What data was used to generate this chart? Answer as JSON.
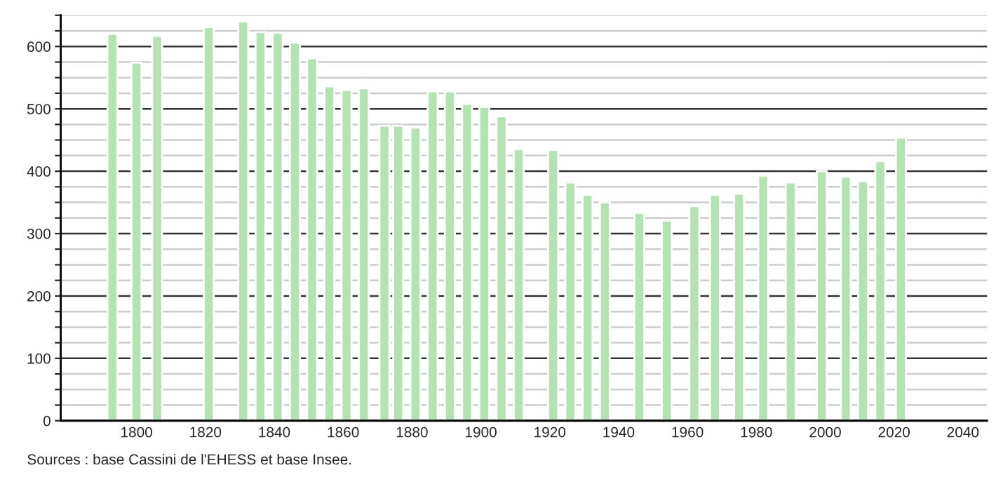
{
  "chart_data": {
    "type": "bar",
    "x": [
      1793,
      1800,
      1806,
      1821,
      1831,
      1836,
      1841,
      1846,
      1851,
      1856,
      1861,
      1866,
      1872,
      1876,
      1881,
      1886,
      1891,
      1896,
      1901,
      1906,
      1911,
      1921,
      1926,
      1931,
      1936,
      1946,
      1954,
      1962,
      1968,
      1975,
      1982,
      1990,
      1999,
      2006,
      2011,
      2016,
      2022
    ],
    "values": [
      620,
      574,
      617,
      631,
      640,
      623,
      622,
      606,
      581,
      536,
      530,
      533,
      473,
      473,
      470,
      528,
      528,
      508,
      503,
      488,
      435,
      434,
      382,
      362,
      350,
      333,
      321,
      344,
      362,
      364,
      393,
      382,
      400,
      391,
      384,
      416,
      454
    ],
    "color": "#b3e3b3",
    "xlim": [
      1778,
      2047
    ],
    "xticks": [
      1800,
      1820,
      1840,
      1860,
      1880,
      1900,
      1920,
      1940,
      1960,
      1980,
      2000,
      2020,
      2040
    ],
    "ylim": [
      0,
      650
    ],
    "yticks": [
      0,
      {
        "value": 25,
        "label": null
      },
      {
        "value": 50,
        "label": null
      },
      {
        "value": 75,
        "label": null
      },
      100,
      {
        "value": 125,
        "label": null
      },
      {
        "value": 150,
        "label": null
      },
      {
        "value": 175,
        "label": null
      },
      200,
      {
        "value": 225,
        "label": null
      },
      {
        "value": 250,
        "label": null
      },
      {
        "value": 275,
        "label": null
      },
      300,
      {
        "value": 325,
        "label": null
      },
      {
        "value": 350,
        "label": null
      },
      {
        "value": 375,
        "label": null
      },
      400,
      {
        "value": 425,
        "label": null
      },
      {
        "value": 450,
        "label": null
      },
      {
        "value": 475,
        "label": null
      },
      500,
      {
        "value": 525,
        "label": null
      },
      {
        "value": 550,
        "label": null
      },
      {
        "value": 575,
        "label": null
      },
      600,
      {
        "value": 625,
        "label": null
      },
      {
        "value": 650,
        "label": null
      }
    ],
    "grid": "y",
    "annotations": [
      "Sources : base Cassini de l'EHESS et base Insee."
    ]
  }
}
